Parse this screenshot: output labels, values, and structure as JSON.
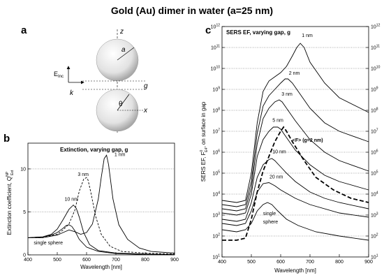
{
  "figure": {
    "title": "Gold (Au) dimer in water (a=25 nm)"
  },
  "panel_a": {
    "letter": "a",
    "labels": {
      "z": "z",
      "a": "a",
      "g": "g",
      "theta": "θ",
      "x": "x",
      "einc": "E",
      "einc_sub": "Inc",
      "k": "k"
    }
  },
  "chart_data": [
    {
      "id": "b",
      "type": "line",
      "letter": "b",
      "title": "Extinction, varying gap, g",
      "xlabel": "Wavelength [nm]",
      "ylabel": "Extinction coefficient, Q",
      "ylabel_sup": "NP",
      "ylabel_sub": "Ext",
      "xlim": [
        400,
        900
      ],
      "ylim": [
        0,
        13
      ],
      "xticks": [
        400,
        500,
        600,
        700,
        800,
        900
      ],
      "yticks": [
        0,
        5,
        10
      ],
      "grid": "horizontal dotted",
      "series": [
        {
          "name": "1 nm",
          "style": "solid",
          "x": [
            400,
            450,
            500,
            520,
            540,
            560,
            580,
            600,
            620,
            640,
            650,
            660,
            668,
            675,
            690,
            710,
            740,
            780,
            820,
            900
          ],
          "y": [
            2.0,
            2.0,
            2.3,
            2.6,
            2.9,
            2.7,
            2.4,
            2.6,
            3.6,
            6.5,
            9.0,
            11.2,
            11.6,
            10.5,
            6.5,
            3.5,
            1.8,
            0.8,
            0.4,
            0.2
          ]
        },
        {
          "name": "3 nm",
          "style": "dashed",
          "x": [
            400,
            450,
            500,
            520,
            540,
            560,
            575,
            590,
            600,
            605,
            615,
            630,
            650,
            680,
            720,
            800,
            900
          ],
          "y": [
            2.0,
            2.0,
            2.4,
            2.9,
            3.6,
            5.2,
            7.4,
            8.8,
            9.0,
            8.7,
            7.2,
            4.6,
            2.4,
            1.0,
            0.4,
            0.2,
            0.1
          ]
        },
        {
          "name": "10 nm",
          "style": "solid",
          "x": [
            400,
            450,
            480,
            500,
            520,
            540,
            555,
            565,
            575,
            590,
            610,
            640,
            700,
            800,
            900
          ],
          "y": [
            2.0,
            2.1,
            2.4,
            3.0,
            4.1,
            5.3,
            5.8,
            5.4,
            4.4,
            2.6,
            1.2,
            0.5,
            0.2,
            0.1,
            0.05
          ]
        },
        {
          "name": "single sphere",
          "style": "solid",
          "x": [
            400,
            450,
            480,
            500,
            520,
            530,
            540,
            550,
            560,
            575,
            600,
            640,
            700,
            800,
            900
          ],
          "y": [
            2.0,
            2.1,
            2.3,
            2.6,
            3.1,
            3.4,
            3.5,
            3.3,
            2.8,
            1.8,
            0.9,
            0.4,
            0.15,
            0.05,
            0.02
          ]
        }
      ],
      "labels": [
        {
          "text": "1 nm",
          "x": 695,
          "y": 11.5
        },
        {
          "text": "3 nm",
          "x": 570,
          "y": 9.2
        },
        {
          "text": "10 nm",
          "x": 525,
          "y": 6.3
        },
        {
          "text": "single sphere",
          "x": 420,
          "y": 1.2
        }
      ]
    },
    {
      "id": "c",
      "type": "line",
      "letter": "c",
      "title": "SERS EF, varying gap, g",
      "xlabel": "Wavelength [nm]",
      "ylabel": "SERS EF, F",
      "ylabel_sup": "0",
      "ylabel_sub": "E4",
      "ylabel_tail": ", on surface in gap",
      "scale": "log",
      "xlim": [
        400,
        900
      ],
      "ylim_exp": [
        1,
        12
      ],
      "xticks": [
        400,
        500,
        600,
        700,
        800,
        900
      ],
      "yticks_exp": [
        1,
        2,
        3,
        4,
        5,
        6,
        7,
        8,
        9,
        10,
        11,
        12
      ],
      "tick_base": "10",
      "grid": "horizontal dotted",
      "series": [
        {
          "name": "1 nm",
          "style": "solid",
          "x": [
            400,
            450,
            480,
            500,
            520,
            540,
            560,
            580,
            600,
            620,
            640,
            655,
            667,
            680,
            700,
            750,
            800,
            900
          ],
          "y_exp": [
            3.7,
            3.6,
            3.7,
            5.0,
            7.4,
            8.9,
            9.4,
            9.6,
            9.8,
            10.1,
            10.6,
            11.0,
            11.2,
            11.0,
            10.3,
            9.3,
            8.6,
            7.9
          ]
        },
        {
          "name": "2 nm",
          "style": "solid",
          "x": [
            400,
            450,
            480,
            500,
            520,
            540,
            560,
            580,
            600,
            615,
            625,
            640,
            660,
            700,
            750,
            800,
            900
          ],
          "y_exp": [
            3.5,
            3.4,
            3.5,
            4.6,
            6.9,
            8.2,
            8.7,
            9.0,
            9.3,
            9.5,
            9.5,
            9.3,
            8.9,
            8.1,
            7.4,
            7.0,
            6.5
          ]
        },
        {
          "name": "3 nm",
          "style": "solid",
          "x": [
            400,
            450,
            480,
            500,
            520,
            540,
            560,
            580,
            595,
            605,
            620,
            650,
            700,
            750,
            800,
            900
          ],
          "y_exp": [
            3.3,
            3.2,
            3.3,
            4.3,
            6.4,
            7.6,
            8.1,
            8.4,
            8.5,
            8.4,
            8.1,
            7.5,
            6.6,
            6.0,
            5.6,
            5.1
          ]
        },
        {
          "name": "5 nm",
          "style": "solid",
          "x": [
            400,
            450,
            480,
            500,
            520,
            540,
            560,
            575,
            590,
            600,
            620,
            650,
            700,
            750,
            800,
            900
          ],
          "y_exp": [
            3.1,
            3.0,
            3.1,
            4.0,
            5.8,
            6.6,
            7.0,
            7.2,
            7.2,
            7.1,
            6.7,
            6.1,
            5.4,
            4.9,
            4.6,
            4.2
          ]
        },
        {
          "name": "10 nm",
          "style": "solid",
          "x": [
            400,
            450,
            480,
            500,
            520,
            540,
            560,
            570,
            580,
            600,
            620,
            650,
            700,
            750,
            800,
            900
          ],
          "y_exp": [
            2.8,
            2.7,
            2.8,
            3.6,
            4.8,
            5.4,
            5.65,
            5.7,
            5.6,
            5.3,
            5.0,
            4.6,
            4.1,
            3.8,
            3.6,
            3.3
          ]
        },
        {
          "name": "20 nm",
          "style": "solid",
          "x": [
            400,
            450,
            480,
            500,
            520,
            540,
            560,
            580,
            600,
            650,
            700,
            800,
            900
          ],
          "y_exp": [
            2.6,
            2.5,
            2.6,
            3.2,
            4.1,
            4.5,
            4.55,
            4.4,
            4.2,
            3.8,
            3.5,
            3.1,
            2.9
          ]
        },
        {
          "name": "single sphere",
          "style": "solid",
          "x": [
            400,
            450,
            480,
            500,
            520,
            540,
            555,
            570,
            590,
            620,
            660,
            720,
            800,
            900
          ],
          "y_exp": [
            2.3,
            2.2,
            2.3,
            2.6,
            3.2,
            3.5,
            3.6,
            3.5,
            3.2,
            2.8,
            2.5,
            2.2,
            2.0,
            1.8
          ]
        },
        {
          "name": "<F> (g=2 nm)",
          "style": "dashed",
          "x": [
            400,
            450,
            480,
            500,
            520,
            540,
            560,
            580,
            600,
            610,
            620,
            640,
            680,
            720,
            780,
            840,
            900
          ],
          "y_exp": [
            1.8,
            1.8,
            1.9,
            2.8,
            4.1,
            5.1,
            5.8,
            6.5,
            7.0,
            7.2,
            7.0,
            6.5,
            5.6,
            4.8,
            4.2,
            3.8,
            3.6
          ]
        }
      ],
      "labels": [
        {
          "text": "1 nm",
          "x": 672,
          "y_exp": 11.5
        },
        {
          "text": "2 nm",
          "x": 628,
          "y_exp": 9.7
        },
        {
          "text": "3 nm",
          "x": 603,
          "y_exp": 8.7
        },
        {
          "text": "5 nm",
          "x": 572,
          "y_exp": 7.45
        },
        {
          "text": "10 nm",
          "x": 572,
          "y_exp": 5.95
        },
        {
          "text": "20 nm",
          "x": 562,
          "y_exp": 4.75
        },
        {
          "text": "single",
          "x": 540,
          "y_exp": 3.0
        },
        {
          "text": "sphere",
          "x": 540,
          "y_exp": 2.6
        },
        {
          "text": "<F> (g=2 nm)",
          "x": 640,
          "y_exp": 6.5
        }
      ]
    }
  ]
}
